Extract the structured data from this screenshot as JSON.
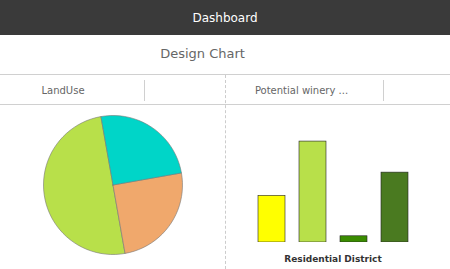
{
  "chart_data": [
    {
      "type": "pie",
      "title": "LandUse",
      "values": [
        0.5,
        0.25,
        0.25
      ],
      "colors": [
        "#b8e04a",
        "#f0a86c",
        "#00d5c8"
      ],
      "annotations": [
        "Dashboard",
        "Design Chart"
      ]
    },
    {
      "type": "bar",
      "title": "Potential winery ...",
      "xlabel": "Residential District",
      "categories": [
        null,
        null,
        null,
        null
      ],
      "values": [
        3.0,
        6.5,
        0.4,
        4.5
      ],
      "colors": [
        "#ffff00",
        "#b8e04a",
        "#3a8c00",
        "#4a7a20"
      ],
      "ylim": [
        0,
        7.02
      ],
      "tick_labels": false
    }
  ]
}
